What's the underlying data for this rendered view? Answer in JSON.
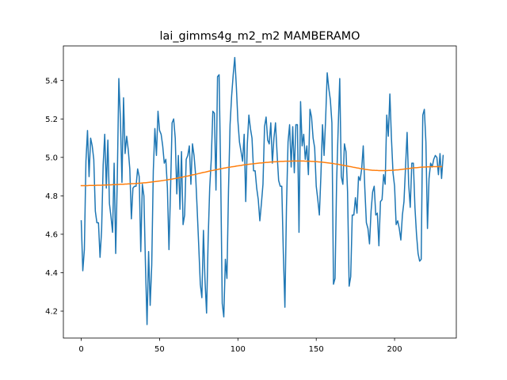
{
  "chart_data": {
    "type": "line",
    "title": "lai_gimms4g_m2_m2 MAMBERAMO",
    "xlabel": "",
    "ylabel": "",
    "xlim": [
      -11.4,
      239.4
    ],
    "ylim": [
      4.06,
      5.58
    ],
    "x_ticks": [
      0,
      50,
      100,
      150,
      200
    ],
    "y_ticks": [
      4.2,
      4.4,
      4.6,
      4.8,
      5.0,
      5.2,
      5.4
    ],
    "y_tick_labels": [
      "4.2",
      "4.4",
      "4.6",
      "4.8",
      "5.0",
      "5.2",
      "5.4"
    ],
    "grid": false,
    "legend": "none",
    "series": [
      {
        "color": "#1f77b4",
        "values": [
          4.67,
          4.41,
          4.52,
          4.98,
          5.14,
          4.9,
          5.1,
          5.06,
          4.99,
          4.72,
          4.66,
          4.66,
          4.48,
          4.62,
          4.96,
          5.12,
          4.84,
          5.09,
          4.76,
          4.69,
          4.61,
          4.97,
          4.5,
          4.88,
          5.41,
          5.2,
          4.87,
          5.31,
          5.02,
          5.11,
          5.04,
          4.94,
          4.68,
          4.84,
          4.85,
          4.85,
          4.94,
          4.9,
          4.51,
          4.86,
          4.8,
          4.44,
          4.13,
          4.51,
          4.23,
          4.44,
          4.93,
          5.15,
          5.01,
          5.24,
          5.14,
          5.12,
          5.06,
          4.97,
          4.99,
          4.84,
          4.52,
          4.83,
          5.18,
          5.2,
          5.1,
          4.81,
          5.01,
          4.73,
          5.03,
          4.65,
          4.7,
          4.99,
          5.01,
          5.06,
          4.86,
          5.07,
          5.01,
          4.91,
          4.73,
          4.54,
          4.34,
          4.27,
          4.62,
          4.36,
          4.19,
          4.57,
          4.84,
          4.99,
          5.24,
          5.23,
          4.83,
          5.42,
          5.43,
          4.92,
          4.24,
          4.17,
          4.47,
          4.37,
          4.83,
          5.17,
          5.32,
          5.43,
          5.52,
          5.37,
          5.19,
          5.08,
          5.03,
          4.98,
          5.12,
          4.77,
          5.07,
          5.22,
          5.15,
          5.1,
          4.93,
          4.93,
          4.84,
          4.78,
          4.67,
          4.76,
          4.86,
          5.16,
          5.21,
          5.09,
          5.07,
          5.18,
          4.97,
          5.1,
          5.18,
          5.02,
          4.88,
          4.85,
          4.85,
          4.5,
          4.22,
          4.74,
          5.08,
          5.17,
          4.95,
          5.16,
          4.92,
          5.17,
          5.17,
          4.61,
          5.29,
          5.06,
          5.12,
          4.99,
          5.06,
          4.91,
          5.25,
          5.21,
          5.1,
          5.05,
          4.85,
          4.78,
          4.7,
          4.91,
          5.17,
          5.01,
          5.2,
          5.44,
          5.36,
          5.3,
          5.18,
          4.34,
          4.37,
          4.87,
          5.15,
          5.41,
          4.9,
          4.86,
          5.07,
          5.03,
          4.82,
          4.33,
          4.38,
          4.7,
          4.7,
          4.79,
          4.71,
          4.9,
          4.88,
          4.94,
          5.06,
          4.84,
          4.66,
          4.63,
          4.55,
          4.72,
          4.82,
          4.85,
          4.7,
          4.71,
          4.54,
          4.77,
          4.78,
          4.91,
          4.86,
          5.22,
          5.11,
          5.33,
          5.1,
          4.92,
          4.85,
          4.65,
          4.67,
          4.63,
          4.57,
          4.7,
          4.77,
          4.95,
          5.13,
          4.86,
          4.74,
          4.97,
          4.97,
          4.74,
          4.6,
          4.5,
          4.46,
          4.47,
          5.22,
          5.25,
          5.08,
          4.63,
          4.89,
          4.97,
          4.95,
          4.99,
          5.01,
          5.0,
          4.91,
          5.02,
          4.89,
          5.01
        ]
      },
      {
        "color": "#ff7f0e",
        "values": [
          4.853,
          4.853,
          4.853,
          4.853,
          4.853,
          4.854,
          4.854,
          4.854,
          4.854,
          4.854,
          4.855,
          4.855,
          4.855,
          4.855,
          4.856,
          4.856,
          4.856,
          4.857,
          4.857,
          4.857,
          4.858,
          4.858,
          4.858,
          4.859,
          4.859,
          4.86,
          4.86,
          4.86,
          4.861,
          4.861,
          4.862,
          4.862,
          4.863,
          4.863,
          4.864,
          4.864,
          4.865,
          4.866,
          4.866,
          4.867,
          4.868,
          4.868,
          4.869,
          4.87,
          4.871,
          4.872,
          4.873,
          4.874,
          4.875,
          4.876,
          4.877,
          4.878,
          4.879,
          4.881,
          4.882,
          4.883,
          4.885,
          4.886,
          4.887,
          4.889,
          4.89,
          4.892,
          4.893,
          4.895,
          4.897,
          4.898,
          4.9,
          4.902,
          4.903,
          4.905,
          4.907,
          4.909,
          4.91,
          4.912,
          4.914,
          4.916,
          4.918,
          4.92,
          4.922,
          4.923,
          4.925,
          4.927,
          4.929,
          4.931,
          4.932,
          4.934,
          4.936,
          4.937,
          4.939,
          4.941,
          4.942,
          4.944,
          4.945,
          4.947,
          4.948,
          4.949,
          4.951,
          4.952,
          4.953,
          4.955,
          4.956,
          4.957,
          4.958,
          4.96,
          4.961,
          4.962,
          4.963,
          4.964,
          4.965,
          4.966,
          4.967,
          4.968,
          4.969,
          4.97,
          4.971,
          4.971,
          4.972,
          4.973,
          4.974,
          4.974,
          4.975,
          4.976,
          4.976,
          4.977,
          4.977,
          4.978,
          4.978,
          4.979,
          4.979,
          4.979,
          4.98,
          4.98,
          4.98,
          4.98,
          4.98,
          4.981,
          4.981,
          4.981,
          4.981,
          4.981,
          4.981,
          4.981,
          4.981,
          4.98,
          4.98,
          4.98,
          4.98,
          4.979,
          4.979,
          4.978,
          4.978,
          4.977,
          4.976,
          4.976,
          4.975,
          4.974,
          4.973,
          4.972,
          4.971,
          4.97,
          4.969,
          4.968,
          4.966,
          4.965,
          4.964,
          4.962,
          4.961,
          4.959,
          4.958,
          4.956,
          4.955,
          4.953,
          4.952,
          4.95,
          4.948,
          4.947,
          4.945,
          4.944,
          4.942,
          4.941,
          4.94,
          4.938,
          4.937,
          4.936,
          4.935,
          4.934,
          4.933,
          4.933,
          4.932,
          4.932,
          4.931,
          4.931,
          4.931,
          4.931,
          4.931,
          4.931,
          4.932,
          4.932,
          4.933,
          4.933,
          4.934,
          4.935,
          4.935,
          4.936,
          4.937,
          4.938,
          4.939,
          4.94,
          4.941,
          4.942,
          4.943,
          4.944,
          4.945,
          4.946,
          4.946,
          4.947,
          4.948,
          4.949,
          4.949,
          4.95,
          4.95,
          4.951,
          4.951,
          4.951,
          4.952,
          4.952,
          4.952,
          4.952,
          4.952,
          4.952,
          4.952
        ]
      }
    ]
  }
}
